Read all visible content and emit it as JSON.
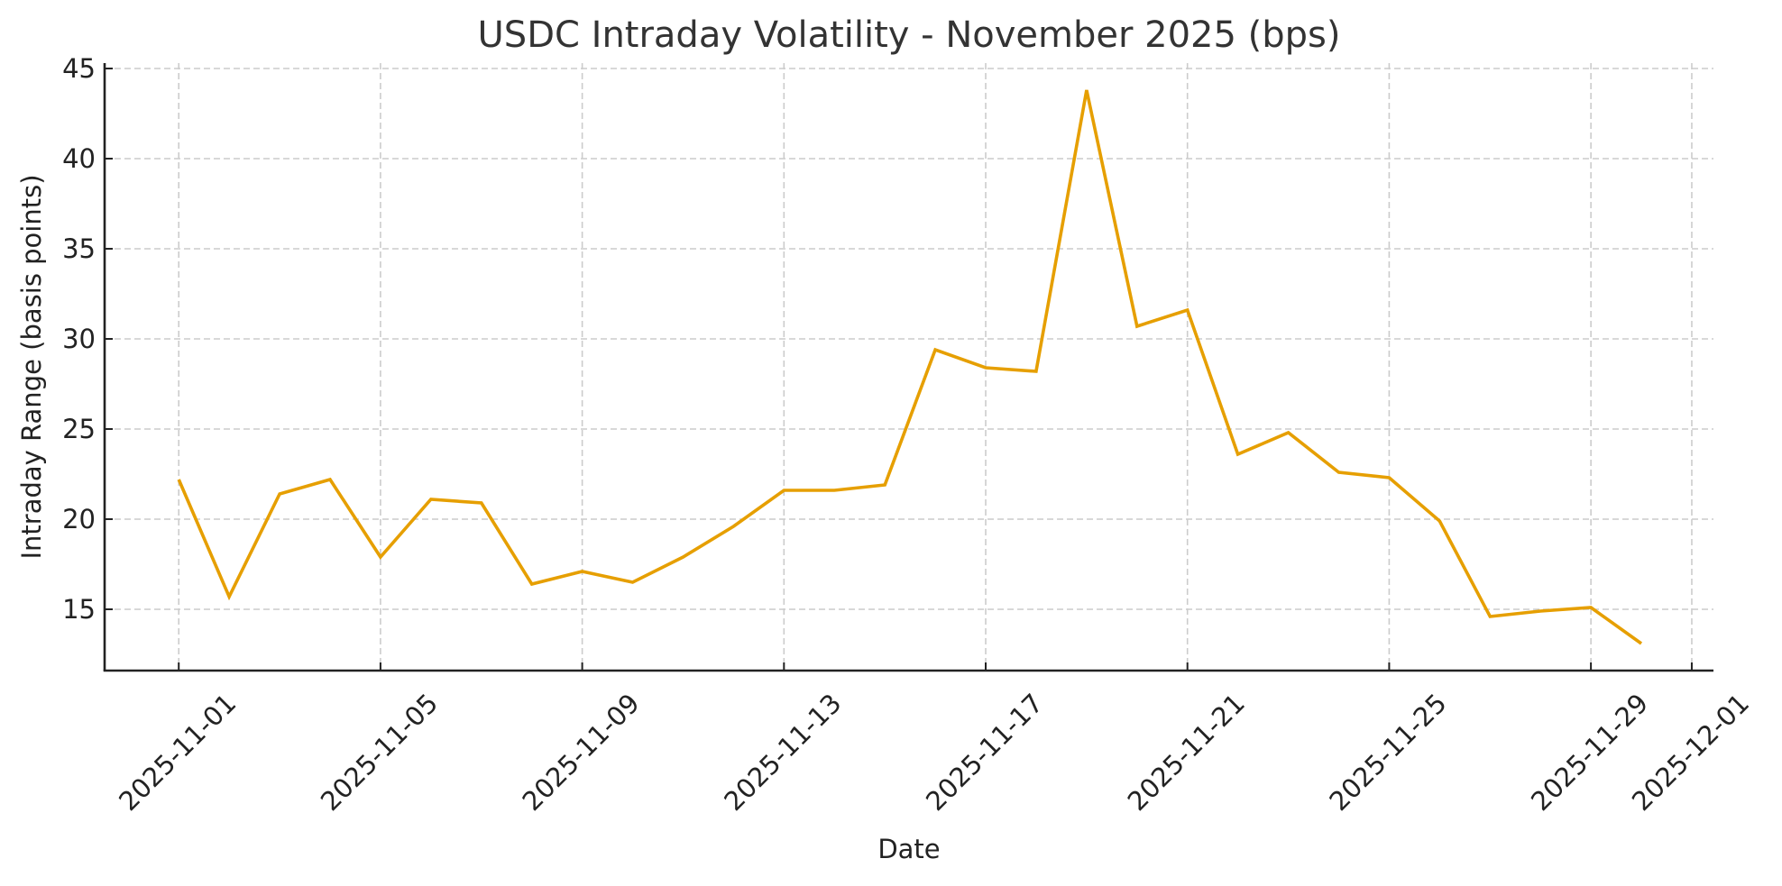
{
  "chart_data": {
    "type": "line",
    "title": "USDC Intraday Volatility - November 2025 (bps)",
    "xlabel": "Date",
    "ylabel": "Intraday Range (basis points)",
    "x": [
      "2025-11-01",
      "2025-11-02",
      "2025-11-03",
      "2025-11-04",
      "2025-11-05",
      "2025-11-06",
      "2025-11-07",
      "2025-11-08",
      "2025-11-09",
      "2025-11-10",
      "2025-11-11",
      "2025-11-12",
      "2025-11-13",
      "2025-11-14",
      "2025-11-15",
      "2025-11-16",
      "2025-11-17",
      "2025-11-18",
      "2025-11-19",
      "2025-11-20",
      "2025-11-21",
      "2025-11-22",
      "2025-11-23",
      "2025-11-24",
      "2025-11-25",
      "2025-11-26",
      "2025-11-27",
      "2025-11-28",
      "2025-11-29",
      "2025-11-30"
    ],
    "series": [
      {
        "name": "Intraday Range (bps)",
        "color": "#E69F00",
        "values": [
          22.2,
          15.7,
          21.4,
          22.2,
          17.9,
          21.1,
          20.9,
          16.4,
          17.1,
          16.5,
          17.9,
          19.6,
          21.6,
          21.6,
          21.9,
          29.4,
          28.4,
          28.2,
          43.8,
          30.7,
          31.6,
          23.6,
          24.8,
          22.6,
          22.3,
          19.9,
          14.6,
          14.9,
          15.1,
          13.1
        ]
      }
    ],
    "xticks": [
      "2025-11-01",
      "2025-11-05",
      "2025-11-09",
      "2025-11-13",
      "2025-11-17",
      "2025-11-21",
      "2025-11-25",
      "2025-11-29",
      "2025-12-01"
    ],
    "xtick_day_offsets": [
      0,
      4,
      8,
      12,
      16,
      20,
      24,
      28,
      30
    ],
    "xlim_day_offsets": [
      -1.47,
      30.43
    ],
    "yticks": [
      15,
      20,
      25,
      30,
      35,
      40,
      45
    ],
    "ylim": [
      11.6,
      45.3
    ],
    "grid": true,
    "legend": null
  }
}
